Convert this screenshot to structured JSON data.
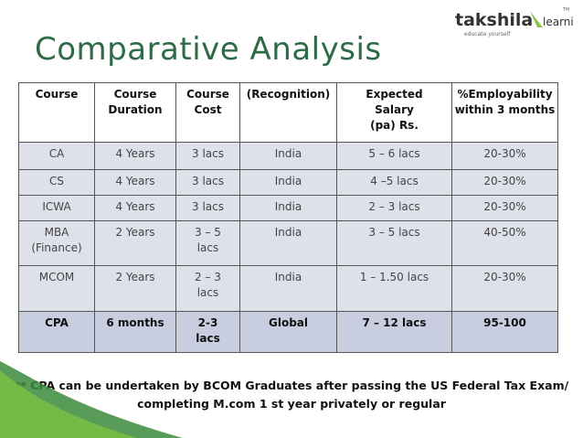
{
  "header": {
    "logo": {
      "brand": "takshila",
      "brand2": "learning",
      "tagline": "educate yourself",
      "mark": "TM"
    },
    "title": "Comparative Analysis"
  },
  "table": {
    "columns": [
      [
        "Course"
      ],
      [
        "Course",
        "Duration"
      ],
      [
        "Course",
        "Cost"
      ],
      [
        "(Recognition)"
      ],
      [
        "Expected",
        "Salary",
        "(pa) Rs."
      ],
      [
        "%Employability",
        "within 3 months"
      ]
    ],
    "rows": [
      [
        [
          "CA"
        ],
        [
          "4 Years"
        ],
        [
          "3 lacs"
        ],
        [
          "India"
        ],
        [
          "5 – 6  lacs"
        ],
        [
          "20-30%"
        ]
      ],
      [
        [
          "CS"
        ],
        [
          "4 Years"
        ],
        [
          "3 lacs"
        ],
        [
          "India"
        ],
        [
          "4 –5 lacs"
        ],
        [
          "20-30%"
        ]
      ],
      [
        [
          "ICWA"
        ],
        [
          "4 Years"
        ],
        [
          "3 lacs"
        ],
        [
          "India"
        ],
        [
          "2 – 3 lacs"
        ],
        [
          "20-30%"
        ]
      ],
      [
        [
          "MBA",
          "(Finance)"
        ],
        [
          "2 Years"
        ],
        [
          "3 – 5",
          "lacs"
        ],
        [
          "India"
        ],
        [
          "3 – 5 lacs"
        ],
        [
          "40-50%"
        ]
      ],
      [
        [
          "MCOM"
        ],
        [
          "2 Years"
        ],
        [
          "2 – 3",
          "lacs"
        ],
        [
          "India"
        ],
        [
          "1 – 1.50 lacs"
        ],
        [
          "20-30%"
        ]
      ],
      [
        [
          "CPA"
        ],
        [
          "6 months"
        ],
        [
          "2-3",
          "lacs"
        ],
        [
          "Global"
        ],
        [
          "7 – 12 lacs"
        ],
        [
          "95-100"
        ]
      ]
    ]
  },
  "footnote": [
    "** CPA can be undertaken by BCOM Graduates after passing the US Federal Tax Exam/",
    "completing M.com 1 st year privately or regular"
  ]
}
